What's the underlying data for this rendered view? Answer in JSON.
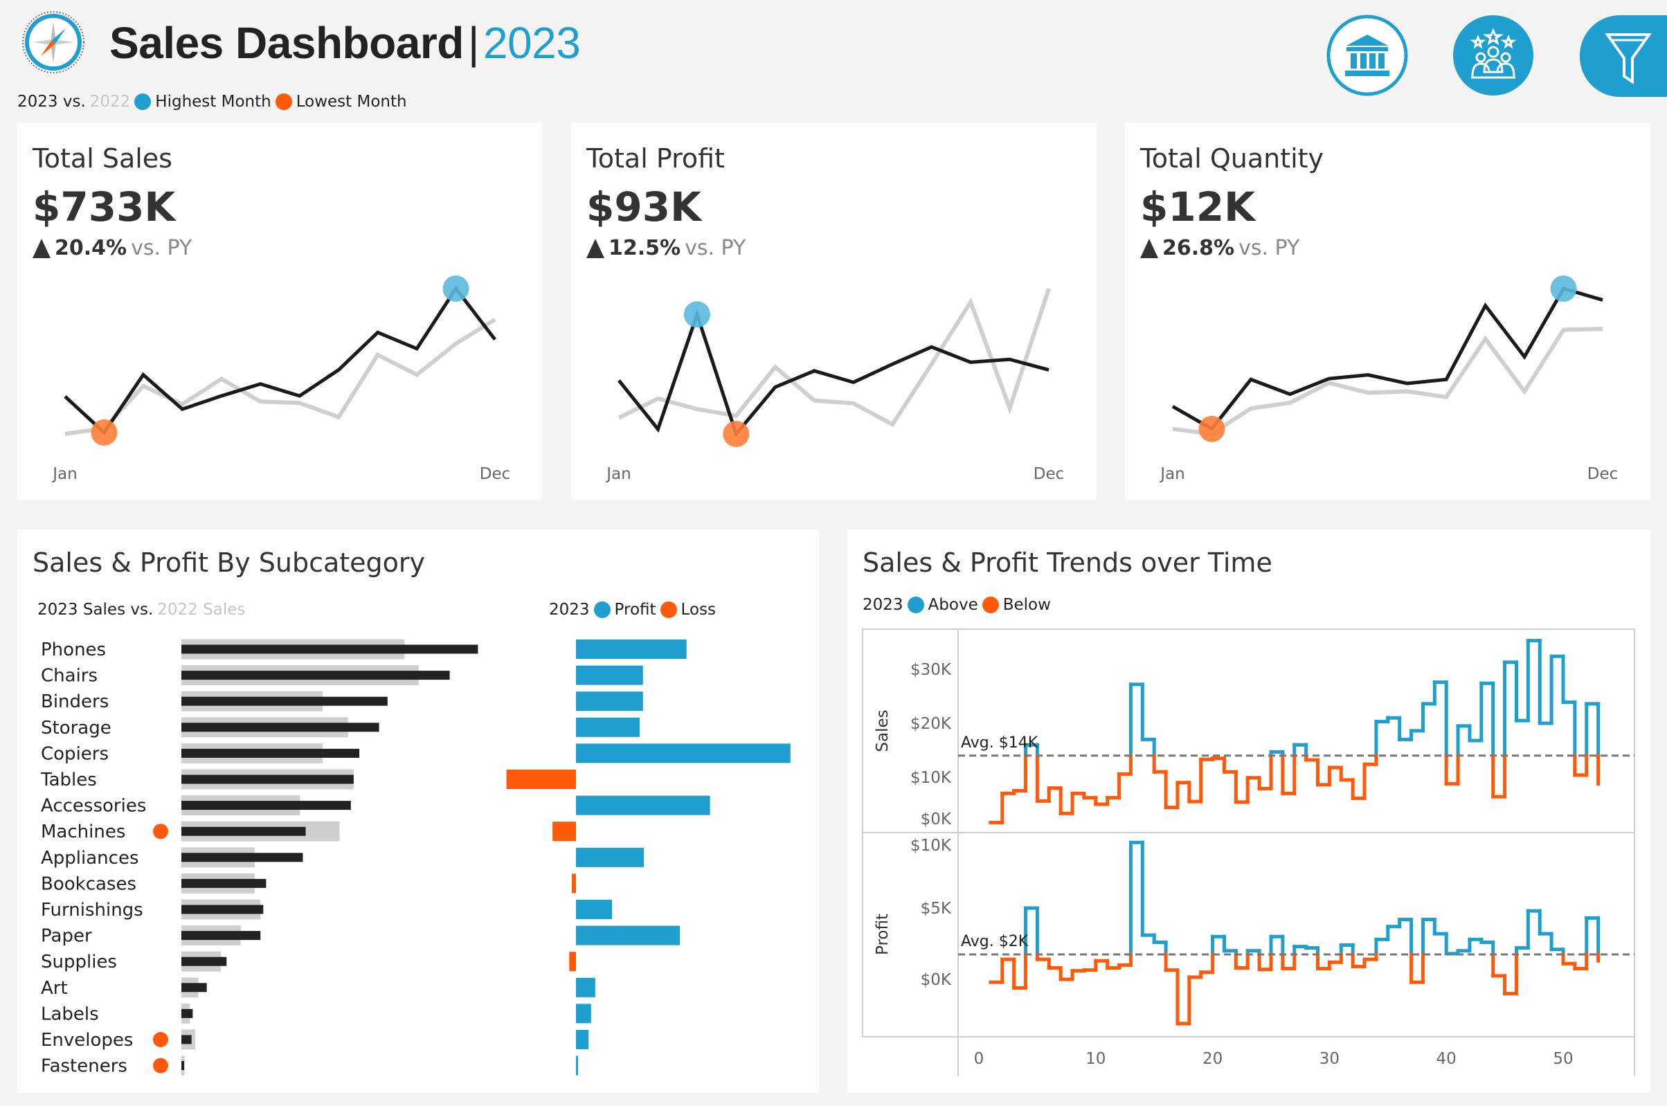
{
  "header": {
    "title": "Sales Dashboard",
    "separator": "|",
    "year": "2023",
    "legend": {
      "current": "2023 vs.",
      "prior": "2022",
      "highest": "Highest Month",
      "lowest": "Lowest Month"
    },
    "icons": [
      "compass-logo-icon",
      "bank-icon",
      "people-stars-icon",
      "filter-icon"
    ]
  },
  "colors": {
    "blue": "#1f9fd0",
    "orange": "#ff5a0a",
    "current": "#1a1a1a",
    "prior": "#cfcfcf",
    "highlight_blue": "#5bb8dd",
    "highlight_orange": "#ff7f3a"
  },
  "kpis": [
    {
      "title": "Total Sales",
      "value": "$733K",
      "change": "20.4%",
      "vs": "vs. PY",
      "start_label": "Jan",
      "end_label": "Dec"
    },
    {
      "title": "Total Profit",
      "value": "$93K",
      "change": "12.5%",
      "vs": "vs. PY",
      "start_label": "Jan",
      "end_label": "Dec"
    },
    {
      "title": "Total Quantity",
      "value": "$12K",
      "change": "26.8%",
      "vs": "vs. PY",
      "start_label": "Jan",
      "end_label": "Dec"
    }
  ],
  "subcategory": {
    "title": "Sales & Profit By Subcategory",
    "sales_legend": {
      "current": "2023 Sales vs.",
      "prior": "2022 Sales"
    },
    "profit_legend": {
      "year": "2023",
      "profit": "Profit",
      "loss": "Loss"
    }
  },
  "trends": {
    "title": "Sales & Profit Trends over Time",
    "legend": {
      "year": "2023",
      "above": "Above",
      "below": "Below"
    },
    "sales_axis_label": "Sales",
    "profit_axis_label": "Profit",
    "sales_avg_label": "Avg. $14K",
    "profit_avg_label": "Avg. $2K"
  },
  "chart_data": [
    {
      "id": "kpi-sales-spark",
      "type": "line",
      "x": [
        "Jan",
        "Feb",
        "Mar",
        "Apr",
        "May",
        "Jun",
        "Jul",
        "Aug",
        "Sep",
        "Oct",
        "Nov",
        "Dec"
      ],
      "series": [
        {
          "name": "2023",
          "values": [
            44.2,
            19.2,
            59.3,
            35.4,
            44.6,
            52.9,
            44.6,
            62.7,
            88.7,
            77.4,
            119.1,
            83.8
          ]
        },
        {
          "name": "2022",
          "values": [
            18.2,
            22.1,
            51.5,
            38.8,
            56.4,
            40.7,
            39.7,
            29.9,
            73.1,
            59.3,
            80.9,
            97.6
          ]
        }
      ],
      "highest_month": "Nov",
      "lowest_month": "Feb"
    },
    {
      "id": "kpi-profit-spark",
      "type": "line",
      "x": [
        "Jan",
        "Feb",
        "Mar",
        "Apr",
        "May",
        "Jun",
        "Jul",
        "Aug",
        "Sep",
        "Oct",
        "Nov",
        "Dec"
      ],
      "series": [
        {
          "name": "2023",
          "values": [
            7.2,
            2.1,
            14.1,
            1.6,
            6.5,
            8.2,
            7.0,
            8.9,
            10.7,
            9.1,
            9.4,
            8.3
          ]
        },
        {
          "name": "2022",
          "values": [
            3.3,
            5.3,
            4.2,
            3.5,
            8.6,
            5.1,
            4.8,
            2.6,
            8.9,
            15.4,
            4.3,
            16.8
          ]
        }
      ],
      "highest_month": "Mar",
      "lowest_month": "Apr"
    },
    {
      "id": "kpi-quantity-spark",
      "type": "line",
      "x": [
        "Jan",
        "Feb",
        "Mar",
        "Apr",
        "May",
        "Jun",
        "Jul",
        "Aug",
        "Sep",
        "Oct",
        "Nov",
        "Dec"
      ],
      "series": [
        {
          "name": "2023",
          "values": [
            578,
            351,
            851,
            702,
            859,
            897,
            811,
            851,
            1597,
            1080,
            1769,
            1654
          ]
        },
        {
          "name": "2022",
          "values": [
            351,
            300,
            558,
            615,
            816,
            716,
            730,
            673,
            1261,
            730,
            1353,
            1362
          ]
        }
      ],
      "highest_month": "Nov",
      "lowest_month": "Feb"
    },
    {
      "id": "subcategory-bars",
      "type": "bar",
      "categories": [
        "Phones",
        "Chairs",
        "Binders",
        "Storage",
        "Copiers",
        "Tables",
        "Accessories",
        "Machines",
        "Appliances",
        "Bookcases",
        "Furnishings",
        "Paper",
        "Supplies",
        "Art",
        "Labels",
        "Envelopes",
        "Fasteners"
      ],
      "series": [
        {
          "name": "2023 Sales",
          "values": [
            105,
            95,
            73,
            70,
            63,
            61,
            60,
            44,
            43,
            30,
            29,
            28,
            16,
            9,
            4,
            3.6,
            1
          ]
        },
        {
          "name": "2022 Sales",
          "values": [
            79,
            84,
            50,
            59,
            50,
            61,
            42,
            56,
            26,
            26,
            28,
            21,
            14,
            6,
            3,
            4.9,
            1.1
          ]
        },
        {
          "name": "Profit",
          "values": [
            13.2,
            8,
            8,
            7.6,
            25.6,
            -8.3,
            16,
            -2.8,
            8.1,
            -0.5,
            4.3,
            12.4,
            -0.8,
            2.3,
            1.8,
            1.5,
            0.25
          ]
        }
      ],
      "below_prior_year": [
        "Machines",
        "Envelopes",
        "Fasteners"
      ]
    },
    {
      "id": "sales-trend",
      "type": "line",
      "step": true,
      "ylabel": "Sales",
      "yticks": [
        "$0K",
        "$10K",
        "$20K",
        "$30K"
      ],
      "ytick_values": [
        0,
        10,
        20,
        30
      ],
      "xticks": [
        0,
        10,
        20,
        30,
        40,
        50
      ],
      "ylim": [
        0,
        36
      ],
      "average": 14,
      "x": [
        1,
        2,
        3,
        4,
        5,
        6,
        7,
        8,
        9,
        10,
        11,
        12,
        13,
        14,
        15,
        16,
        17,
        18,
        19,
        20,
        21,
        22,
        23,
        24,
        25,
        26,
        27,
        28,
        29,
        30,
        31,
        32,
        33,
        34,
        35,
        36,
        37,
        38,
        39,
        40,
        41,
        42,
        43,
        44,
        45,
        46,
        47,
        48,
        49,
        50,
        51,
        52,
        53
      ],
      "values": [
        1.6,
        7,
        7.5,
        16,
        5.6,
        8,
        3.3,
        7,
        6.2,
        5,
        6.2,
        10.6,
        27.2,
        17,
        11,
        4.4,
        9,
        5.5,
        13.3,
        13.5,
        11,
        5.4,
        9.9,
        7.9,
        14.7,
        7,
        16,
        13.2,
        8.6,
        11.8,
        9.5,
        6.1,
        12.4,
        20.3,
        21,
        17,
        18.6,
        23.6,
        27.6,
        8.8,
        19.5,
        16.8,
        27.4,
        6.4,
        31.3,
        20.5,
        35.3,
        20,
        32.4,
        23.9,
        10.4,
        23.6,
        8.8
      ]
    },
    {
      "id": "profit-trend",
      "type": "line",
      "step": true,
      "ylabel": "Profit",
      "yticks": [
        "$0K",
        "$5K",
        "$10K"
      ],
      "ytick_values": [
        0,
        5,
        10
      ],
      "xticks": [
        0,
        10,
        20,
        30,
        40,
        50
      ],
      "ylim": [
        -3.5,
        10
      ],
      "average": 1.75,
      "x": [
        1,
        2,
        3,
        4,
        5,
        6,
        7,
        8,
        9,
        10,
        11,
        12,
        13,
        14,
        15,
        16,
        17,
        18,
        19,
        20,
        21,
        22,
        23,
        24,
        25,
        26,
        27,
        28,
        29,
        30,
        31,
        32,
        33,
        34,
        35,
        36,
        37,
        38,
        39,
        40,
        41,
        42,
        43,
        44,
        45,
        46,
        47,
        48,
        49,
        50,
        51,
        52,
        53
      ],
      "values": [
        -0.2,
        1.4,
        -0.6,
        5,
        1.4,
        0.8,
        0,
        0.6,
        0.65,
        1.3,
        0.8,
        1,
        9.6,
        3.1,
        2.6,
        0.65,
        -3.1,
        0.15,
        0.5,
        3,
        2,
        0.8,
        2,
        0.7,
        3,
        0.75,
        2.3,
        2.2,
        0.75,
        1.2,
        2.4,
        0.9,
        1.4,
        2.8,
        3.7,
        4.2,
        -0.2,
        4.2,
        3.2,
        1.8,
        2,
        2.8,
        2.6,
        0.25,
        -1,
        2.2,
        4.8,
        3.2,
        2.1,
        1.1,
        0.75,
        4.3,
        1.3
      ]
    }
  ]
}
